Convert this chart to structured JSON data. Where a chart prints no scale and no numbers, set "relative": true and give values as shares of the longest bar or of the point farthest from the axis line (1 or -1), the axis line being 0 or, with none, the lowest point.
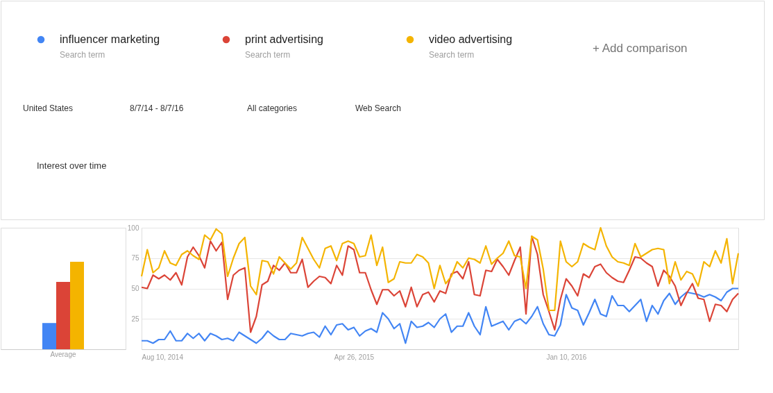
{
  "chart_data": [
    {
      "type": "bar",
      "relative": true,
      "categories": [
        "Average"
      ],
      "series": [
        {
          "color": "#4285f4",
          "values": [
            0.3
          ]
        },
        {
          "color": "#db4437",
          "values": [
            0.77
          ]
        },
        {
          "color": "#f4b400",
          "values": [
            1
          ]
        }
      ]
    },
    {
      "type": "line",
      "title": "Interest over time",
      "legend": "top",
      "grid": "y",
      "annotations": [
        "Search term",
        "Search term",
        "Search term",
        "+ Add comparison",
        "United States",
        "8/7/14 - 8/7/16",
        "All categories",
        "Web Search"
      ],
      "x": [
        "2014-08-10",
        "2014-08-17",
        "2014-08-24",
        "2014-08-31",
        "2014-09-07",
        "2014-09-14",
        "2014-09-21",
        "2014-09-28",
        "2014-10-05",
        "2014-10-12",
        "2014-10-19",
        "2014-10-26",
        "2014-11-02",
        "2014-11-09",
        "2014-11-16",
        "2014-11-23",
        "2014-11-30",
        "2014-12-07",
        "2014-12-14",
        "2014-12-21",
        "2014-12-28",
        "2015-01-04",
        "2015-01-11",
        "2015-01-18",
        "2015-01-25",
        "2015-02-01",
        "2015-02-08",
        "2015-02-15",
        "2015-02-22",
        "2015-03-01",
        "2015-03-08",
        "2015-03-15",
        "2015-03-22",
        "2015-03-29",
        "2015-04-05",
        "2015-04-12",
        "2015-04-19",
        "2015-04-26",
        "2015-05-03",
        "2015-05-10",
        "2015-05-17",
        "2015-05-24",
        "2015-05-31",
        "2015-06-07",
        "2015-06-14",
        "2015-06-21",
        "2015-06-28",
        "2015-07-05",
        "2015-07-12",
        "2015-07-19",
        "2015-07-26",
        "2015-08-02",
        "2015-08-09",
        "2015-08-16",
        "2015-08-23",
        "2015-08-30",
        "2015-09-06",
        "2015-09-13",
        "2015-09-20",
        "2015-09-27",
        "2015-10-04",
        "2015-10-11",
        "2015-10-18",
        "2015-10-25",
        "2015-11-01",
        "2015-11-08",
        "2015-11-15",
        "2015-11-22",
        "2015-11-29",
        "2015-12-06",
        "2015-12-13",
        "2015-12-20",
        "2015-12-27",
        "2016-01-03",
        "2016-01-10",
        "2016-01-17",
        "2016-01-24",
        "2016-01-31",
        "2016-02-07",
        "2016-02-14",
        "2016-02-21",
        "2016-02-28",
        "2016-03-06",
        "2016-03-13",
        "2016-03-20",
        "2016-03-27",
        "2016-04-03",
        "2016-04-10",
        "2016-04-17",
        "2016-04-24",
        "2016-05-01",
        "2016-05-08",
        "2016-05-15",
        "2016-05-22",
        "2016-05-29",
        "2016-06-05",
        "2016-06-12",
        "2016-06-19",
        "2016-06-26",
        "2016-07-03",
        "2016-07-10",
        "2016-07-17",
        "2016-07-24",
        "2016-07-31",
        "2016-08-07"
      ],
      "xlim": [
        "2014-08-10",
        "2016-08-07"
      ],
      "xticks": [
        {
          "value": "2014-08-10",
          "label": "Aug 10, 2014"
        },
        {
          "value": "2015-04-26",
          "label": "Apr 26, 2015"
        },
        {
          "value": "2016-01-10",
          "label": "Jan 10, 2016"
        }
      ],
      "ylim": [
        0,
        100
      ],
      "yticks": [
        25,
        50,
        75,
        100
      ],
      "series": [
        {
          "name": "influencer marketing",
          "color": "#4285f4",
          "values": [
            7,
            7,
            5,
            8,
            8,
            15,
            7,
            7,
            13,
            9,
            13,
            7,
            13,
            11,
            8,
            9,
            7,
            14,
            11,
            8,
            5,
            9,
            15,
            11,
            8,
            8,
            13,
            12,
            11,
            13,
            14,
            10,
            19,
            12,
            20,
            21,
            16,
            18,
            11,
            15,
            17,
            14,
            30,
            25,
            17,
            21,
            5,
            23,
            18,
            19,
            22,
            18,
            25,
            29,
            14,
            19,
            19,
            30,
            19,
            12,
            35,
            19,
            21,
            23,
            16,
            23,
            25,
            21,
            27,
            35,
            21,
            12,
            11,
            20,
            45,
            34,
            32,
            20,
            30,
            41,
            29,
            27,
            44,
            36,
            36,
            31,
            36,
            41,
            23,
            36,
            29,
            40,
            46,
            37,
            43,
            47,
            46,
            45,
            43,
            45,
            43,
            40,
            47,
            50,
            50
          ]
        },
        {
          "name": "print advertising",
          "color": "#db4437",
          "values": [
            51,
            50,
            61,
            58,
            61,
            57,
            63,
            53,
            76,
            84,
            77,
            67,
            89,
            81,
            88,
            41,
            61,
            65,
            67,
            14,
            27,
            53,
            56,
            69,
            65,
            71,
            63,
            63,
            74,
            51,
            56,
            60,
            59,
            54,
            69,
            61,
            85,
            82,
            63,
            63,
            49,
            37,
            49,
            49,
            44,
            48,
            35,
            51,
            35,
            45,
            47,
            39,
            48,
            46,
            62,
            64,
            58,
            72,
            45,
            44,
            65,
            64,
            74,
            68,
            61,
            73,
            84,
            29,
            93,
            78,
            45,
            31,
            16,
            41,
            58,
            52,
            44,
            62,
            59,
            68,
            70,
            63,
            59,
            56,
            55,
            65,
            76,
            75,
            71,
            68,
            52,
            65,
            60,
            52,
            36,
            46,
            54,
            42,
            41,
            23,
            37,
            36,
            31,
            41,
            46
          ]
        },
        {
          "name": "video advertising",
          "color": "#f4b400",
          "values": [
            60,
            82,
            63,
            67,
            81,
            71,
            69,
            78,
            81,
            77,
            74,
            94,
            90,
            99,
            95,
            60,
            75,
            87,
            92,
            52,
            45,
            73,
            72,
            62,
            76,
            71,
            66,
            71,
            92,
            83,
            74,
            67,
            83,
            85,
            73,
            87,
            89,
            87,
            76,
            77,
            94,
            69,
            84,
            55,
            58,
            72,
            71,
            71,
            78,
            76,
            71,
            50,
            69,
            54,
            60,
            72,
            67,
            75,
            74,
            71,
            85,
            70,
            75,
            79,
            89,
            77,
            76,
            50,
            93,
            90,
            66,
            32,
            32,
            89,
            72,
            68,
            72,
            87,
            84,
            82,
            100,
            85,
            76,
            72,
            71,
            69,
            87,
            76,
            79,
            82,
            83,
            82,
            54,
            72,
            57,
            64,
            62,
            52,
            72,
            68,
            81,
            71,
            91,
            54,
            79
          ]
        }
      ]
    }
  ]
}
